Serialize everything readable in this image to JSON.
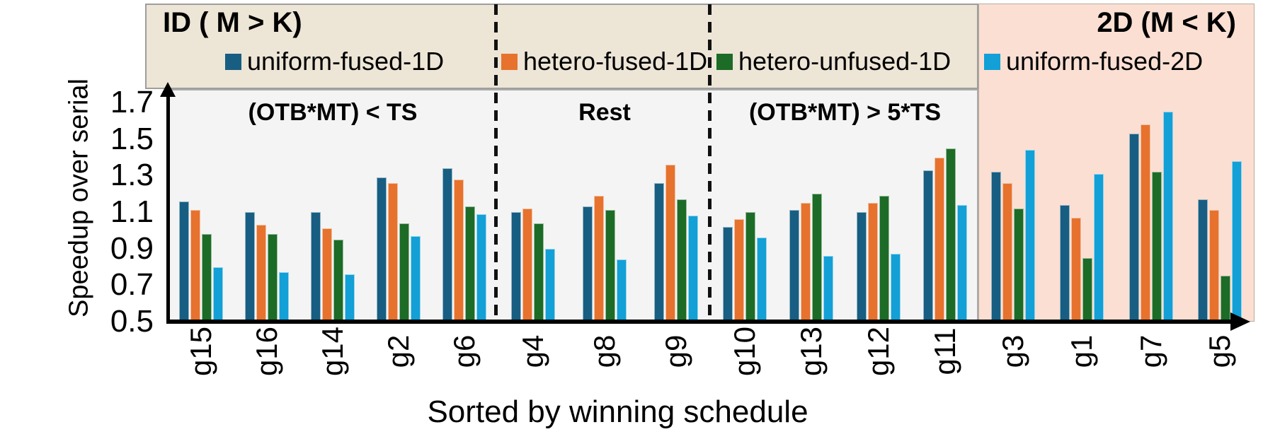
{
  "header": {
    "left_title": "ID ( M > K)",
    "right_title": "2D (M < K)"
  },
  "chart_data": {
    "type": "bar",
    "title": "",
    "xlabel": "Sorted by winning schedule",
    "ylabel": "Speedup over serial",
    "ylim": [
      0.5,
      1.7
    ],
    "yticks": [
      0.5,
      0.7,
      0.9,
      1.1,
      1.3,
      1.5,
      1.7
    ],
    "grid": false,
    "legend_position": "top",
    "categories": [
      "g15",
      "g16",
      "g14",
      "g2",
      "g6",
      "g4",
      "g8",
      "g9",
      "g10",
      "g13",
      "g12",
      "g11",
      "g3",
      "g1",
      "g7",
      "g5"
    ],
    "series": [
      {
        "name": "uniform-fused-1D",
        "color": "#175e82",
        "values": [
          1.16,
          1.1,
          1.1,
          1.29,
          1.34,
          1.1,
          1.13,
          1.26,
          1.02,
          1.11,
          1.1,
          1.33,
          1.32,
          1.14,
          1.53,
          1.17
        ]
      },
      {
        "name": "hetero-fused-1D",
        "color": "#e6722e",
        "values": [
          1.11,
          1.03,
          1.01,
          1.26,
          1.28,
          1.12,
          1.19,
          1.36,
          1.06,
          1.15,
          1.15,
          1.4,
          1.26,
          1.07,
          1.58,
          1.11
        ]
      },
      {
        "name": "hetero-unfused-1D",
        "color": "#1c6b26",
        "values": [
          0.98,
          0.98,
          0.95,
          1.04,
          1.13,
          1.04,
          1.11,
          1.17,
          1.1,
          1.2,
          1.19,
          1.45,
          1.12,
          0.85,
          1.32,
          0.75
        ]
      },
      {
        "name": "uniform-fused-2D",
        "color": "#12a0d6",
        "values": [
          0.8,
          0.77,
          0.76,
          0.97,
          1.09,
          0.9,
          0.84,
          1.08,
          0.96,
          0.86,
          0.87,
          1.14,
          1.44,
          1.31,
          1.65,
          1.38
        ]
      }
    ],
    "sections": [
      {
        "label": "(OTB*MT) < TS",
        "categories": [
          "g15",
          "g16",
          "g14",
          "g2",
          "g6"
        ]
      },
      {
        "label": "Rest",
        "categories": [
          "g4",
          "g8",
          "g9"
        ]
      },
      {
        "label": "(OTB*MT) > 5*TS",
        "categories": [
          "g10",
          "g13",
          "g12",
          "g11"
        ]
      },
      {
        "label": "",
        "categories": [
          "g3",
          "g1",
          "g7",
          "g5"
        ]
      }
    ],
    "colors": {
      "panel_1d_bg": "#ede5d6",
      "panel_2d_bg": "#fbdfd3",
      "plot_bg": "#f4f4f4"
    }
  }
}
